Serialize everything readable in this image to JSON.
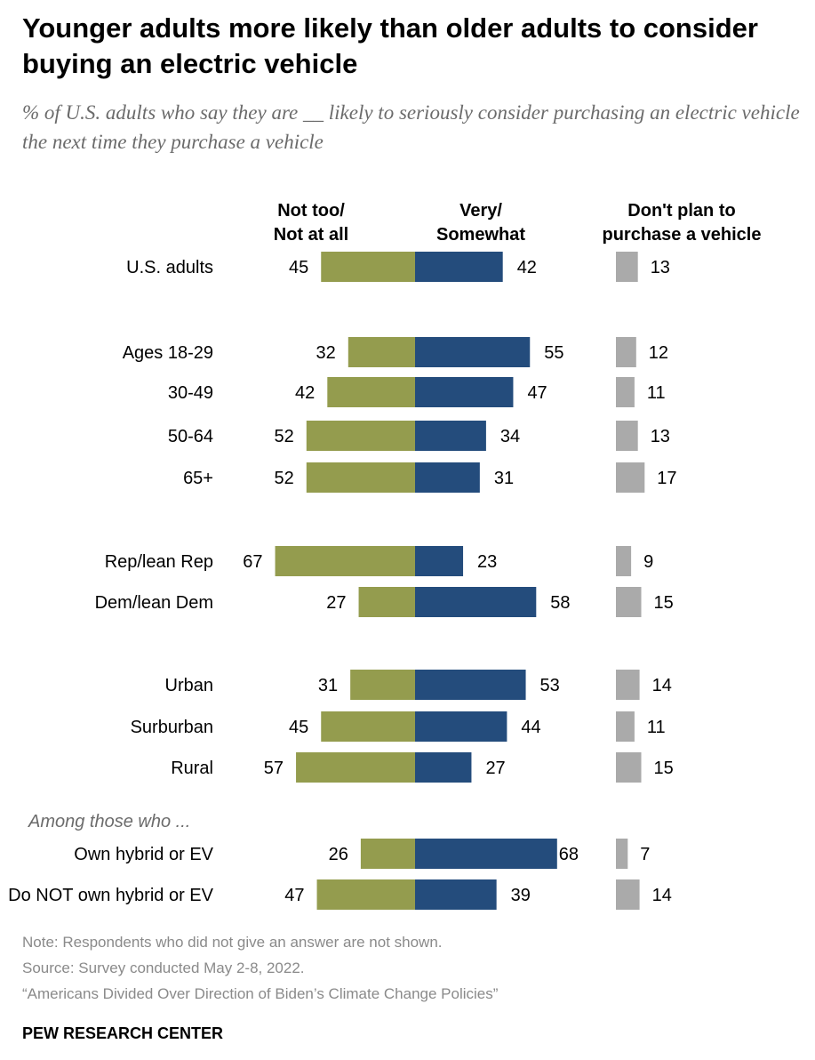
{
  "title": "Younger adults more likely than older adults to consider buying an electric vehicle",
  "subtitle": "% of U.S. adults who say they are __ likely to seriously consider purchasing an electric vehicle the next time they purchase a vehicle",
  "notes": {
    "note": "Note: Respondents who did not give an answer are not shown.",
    "source": "Source: Survey conducted May 2-8, 2022.",
    "report": "“Americans Divided Over Direction of Biden’s Climate Change Policies”",
    "brand": "PEW RESEARCH CENTER"
  },
  "colors": {
    "not_likely": "#949c4e",
    "likely": "#244c7c",
    "no_plan": "#aaaaaa"
  },
  "chart_data": {
    "type": "bar",
    "orientation": "horizontal-diverging",
    "series": [
      {
        "name": "Not too/ Not at all",
        "header_lines": [
          "Not too/",
          "Not at all"
        ],
        "values": [
          45,
          32,
          42,
          52,
          52,
          67,
          27,
          31,
          45,
          57,
          26,
          47
        ]
      },
      {
        "name": "Very/ Somewhat",
        "header_lines": [
          "Very/",
          "Somewhat"
        ],
        "values": [
          42,
          55,
          47,
          34,
          31,
          23,
          58,
          53,
          44,
          27,
          68,
          39
        ]
      },
      {
        "name": "Don't plan to purchase a vehicle",
        "header_lines": [
          "Don't plan to",
          "purchase a vehicle"
        ],
        "values": [
          13,
          12,
          11,
          13,
          17,
          9,
          15,
          14,
          11,
          15,
          7,
          14
        ]
      }
    ],
    "categories": [
      "U.S. adults",
      "Ages 18-29",
      "30-49",
      "50-64",
      "65+",
      "Rep/lean Rep",
      "Dem/lean Dem",
      "Urban",
      "Surburban",
      "Rural",
      "Own hybrid or EV",
      "Do NOT own hybrid or EV"
    ],
    "group_labels": [
      {
        "before": 10,
        "text": "Among those who ..."
      }
    ]
  }
}
